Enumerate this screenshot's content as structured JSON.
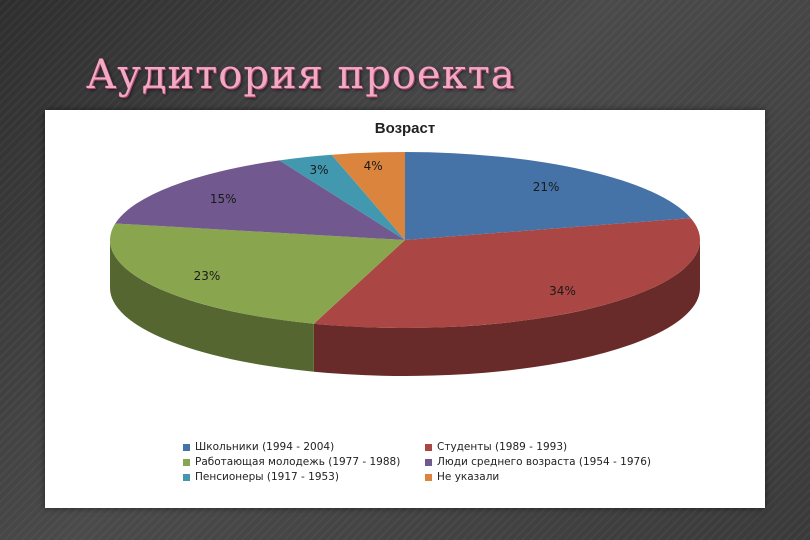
{
  "slide": {
    "title": "Аудитория проекта"
  },
  "chart_data": {
    "type": "pie",
    "title": "Возраст",
    "legend_position": "bottom",
    "slices": [
      {
        "label": "Школьники (1994 - 2004)",
        "value": 21,
        "display": "21%",
        "color": "#4572a7"
      },
      {
        "label": "Студенты (1989 - 1993)",
        "value": 34,
        "display": "34%",
        "color": "#aa4643"
      },
      {
        "label": "Работающая молодежь (1977 - 1988)",
        "value": 23,
        "display": "23%",
        "color": "#89a54e"
      },
      {
        "label": "Люди среднего возраста (1954 - 1976)",
        "value": 15,
        "display": "15%",
        "color": "#71588f"
      },
      {
        "label": "Пенсионеры (1917 - 1953)",
        "value": 3,
        "display": "3%",
        "color": "#4198af"
      },
      {
        "label": "Не указали",
        "value": 4,
        "display": "4%",
        "color": "#db843d"
      }
    ]
  }
}
